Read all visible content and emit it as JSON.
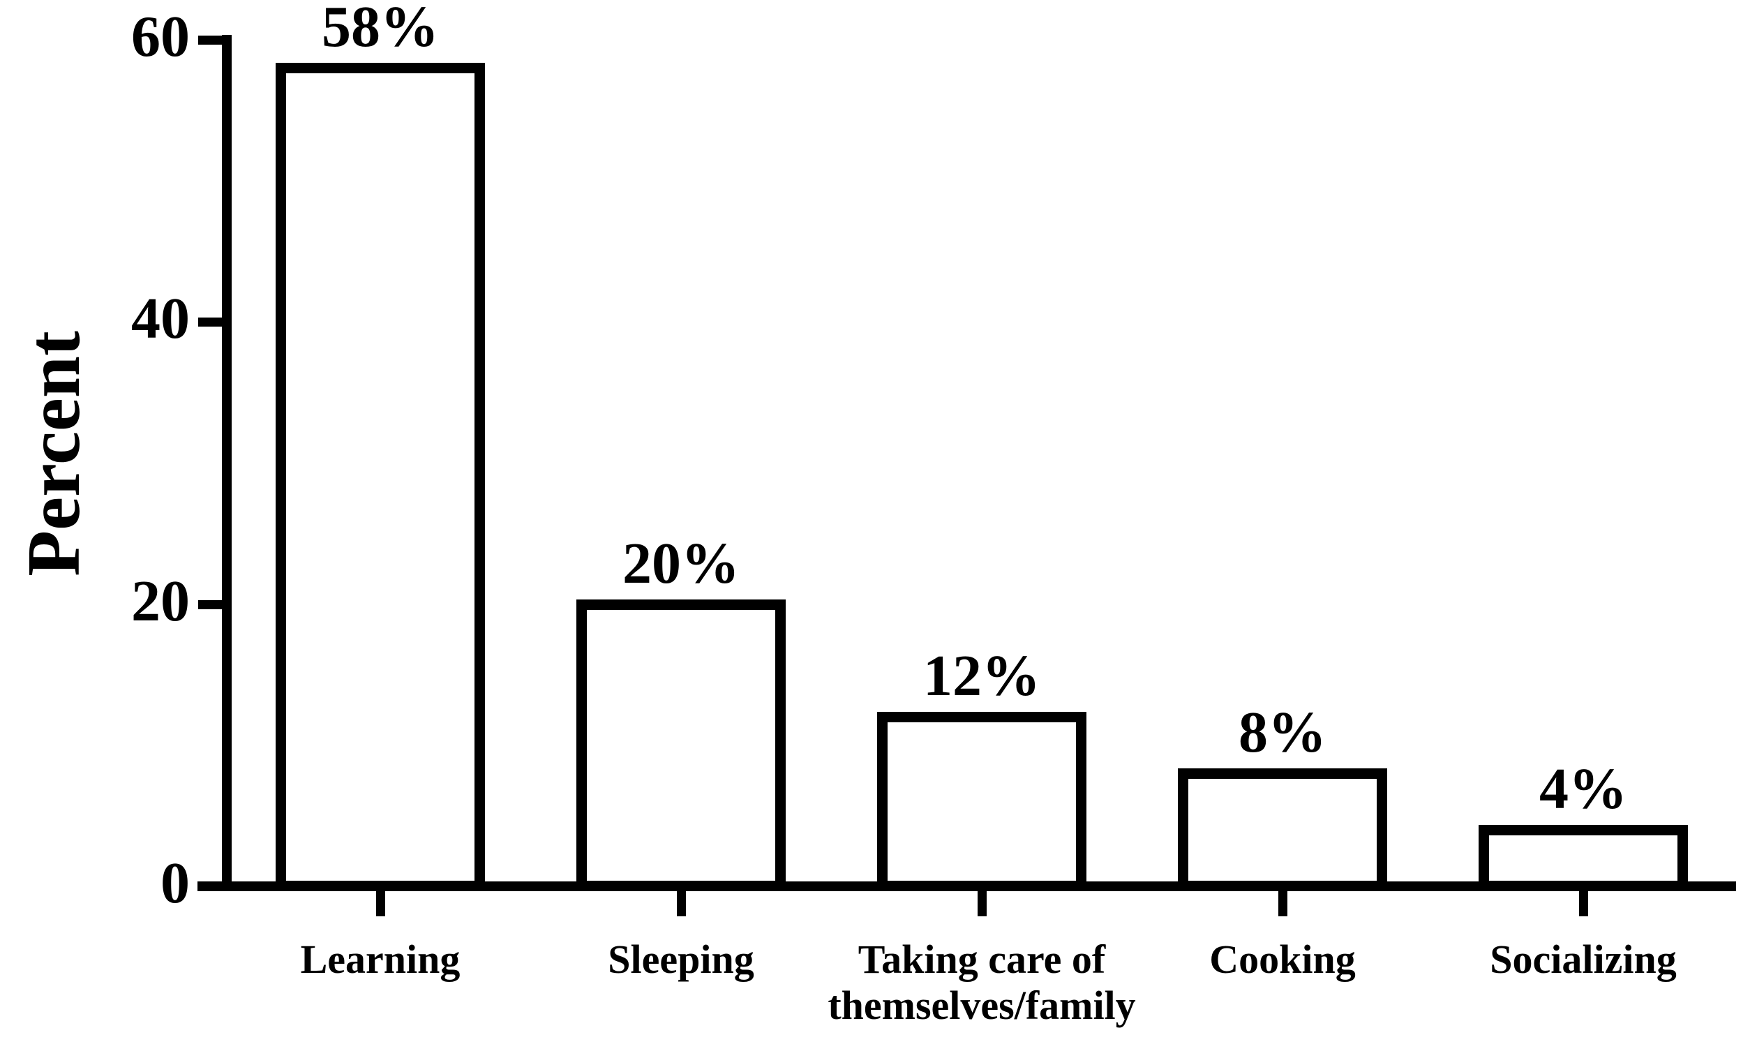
{
  "chart_data": {
    "type": "bar",
    "title": "",
    "xlabel": "",
    "ylabel": "Percent",
    "ylim": [
      0,
      60
    ],
    "yticks": [
      0,
      20,
      40,
      60
    ],
    "categories": [
      "Learning",
      "Sleeping",
      "Taking care of\nthemselves/family",
      "Cooking",
      "Socializing"
    ],
    "values": [
      58,
      20,
      12,
      8,
      4
    ],
    "bar_labels": [
      "58%",
      "20%",
      "12%",
      "8%",
      "4%"
    ],
    "grid": "off",
    "legend": "none",
    "bar_fill": "#ffffff",
    "stroke_color": "#000000",
    "background": "#ffffff",
    "text_color": "#000000"
  }
}
